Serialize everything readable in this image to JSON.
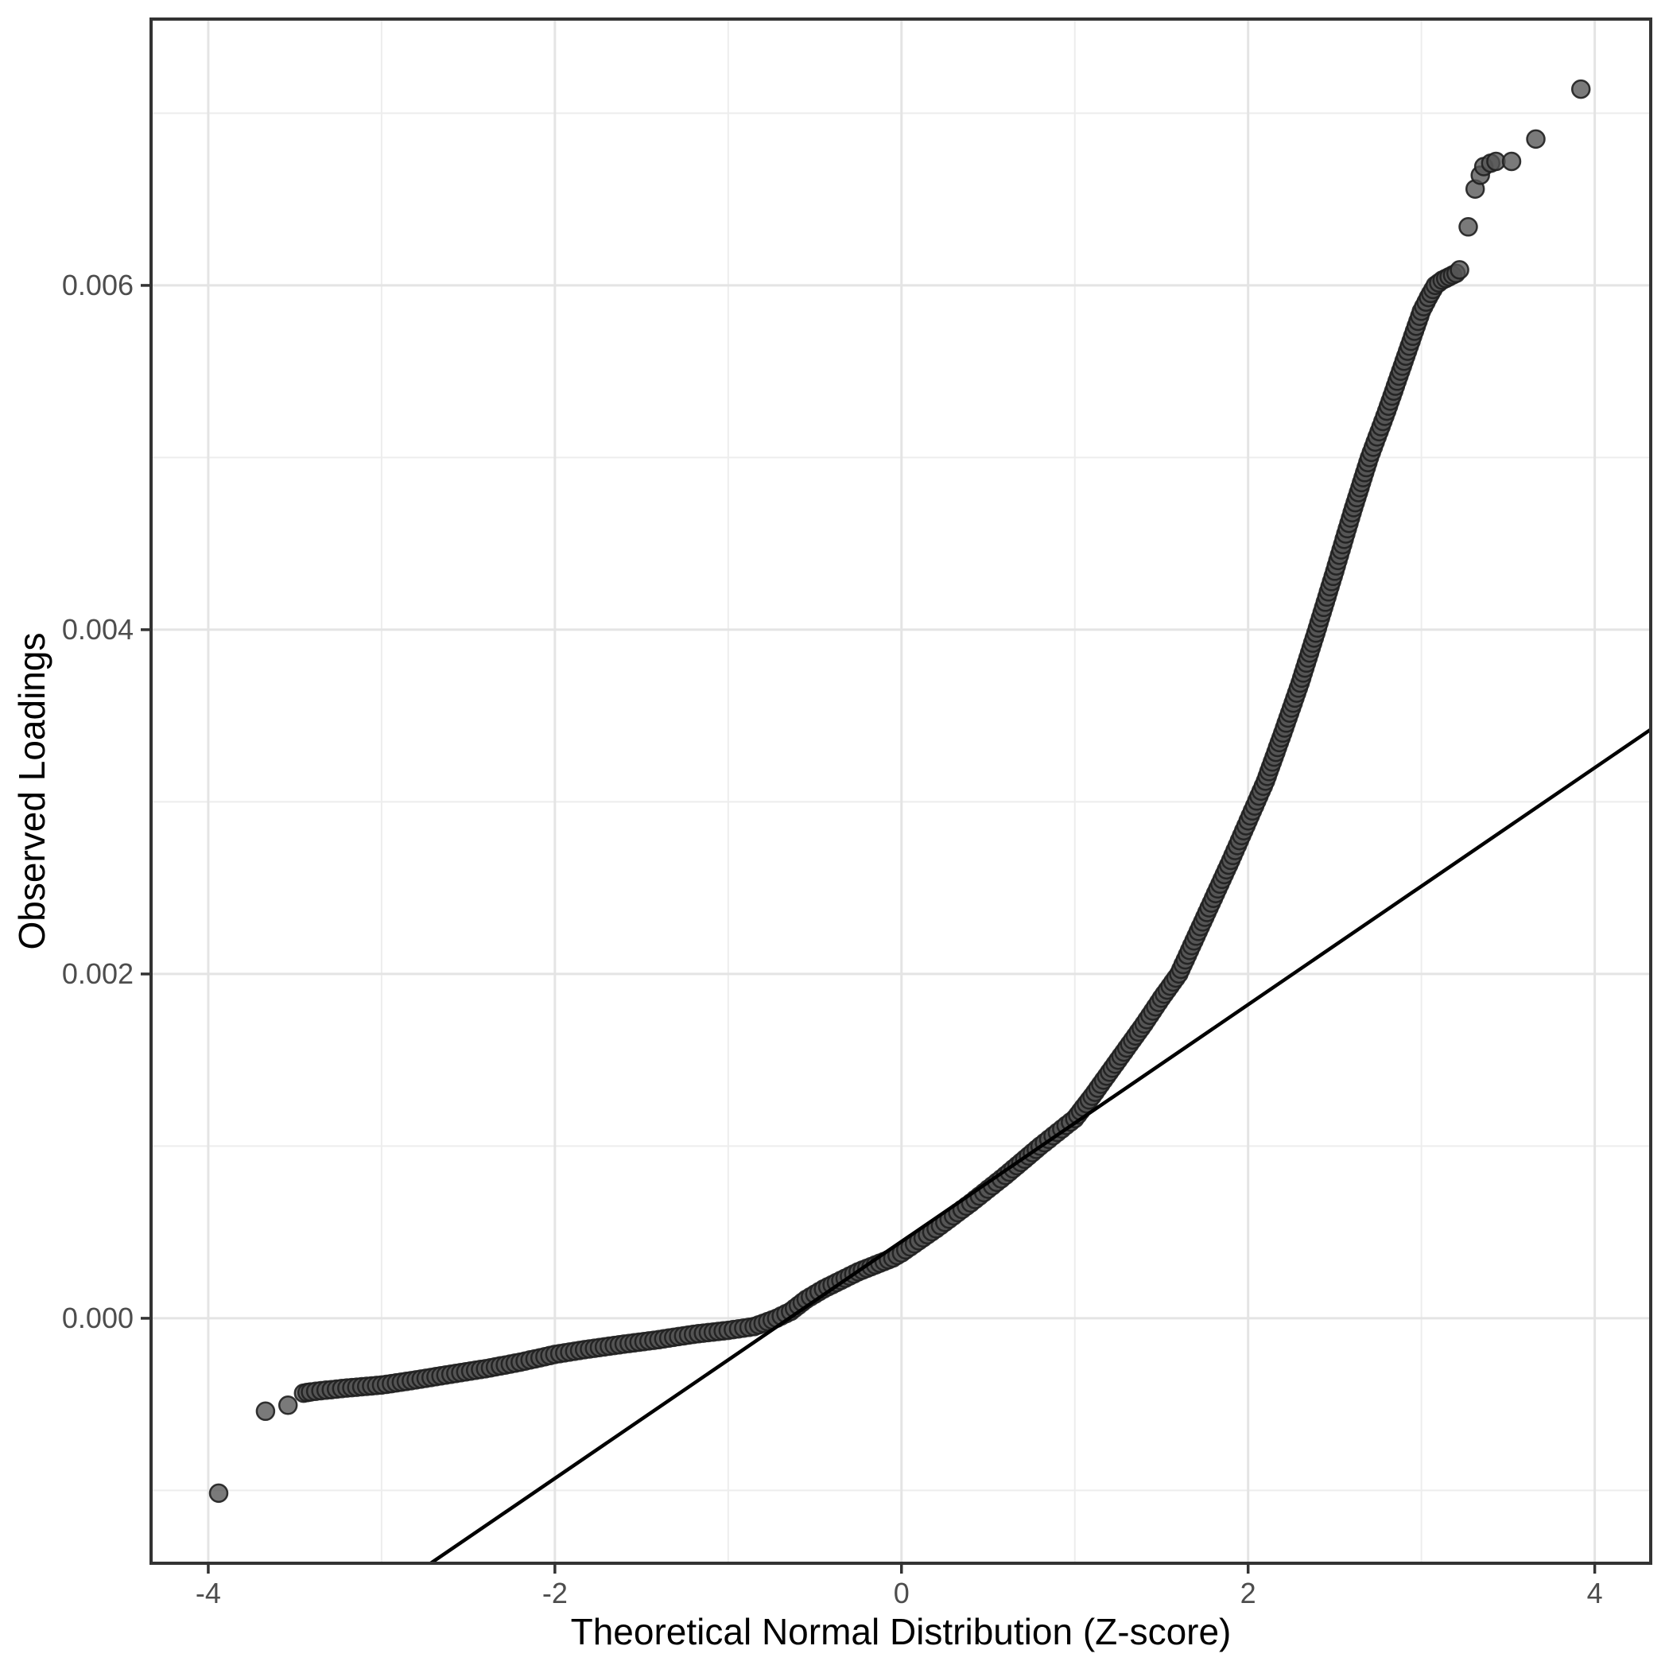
{
  "figure": {
    "kind": "qq-plot",
    "background_color": "#ffffff",
    "panel_background_color": "#ffffff",
    "panel_border_color": "#333333",
    "grid_major_color": "#e4e4e4",
    "grid_minor_color": "#ededed",
    "tick_mark_color": "#333333",
    "tick_label_color": "#4d4d4d",
    "axis_title_color": "#000000"
  },
  "chart_data": {
    "type": "scatter",
    "subtype": "qq-plot",
    "title": "",
    "xlabel": "Theoretical Normal Distribution (Z-score)",
    "ylabel": "Observed Loadings",
    "xlim": [
      -4.33,
      4.323
    ],
    "ylim": [
      -0.001423,
      0.007547
    ],
    "grid": true,
    "legend": false,
    "x_major_ticks": [
      -4,
      -2,
      0,
      2,
      4
    ],
    "x_major_tick_labels": [
      "-4",
      "-2",
      "0",
      "2",
      "4"
    ],
    "x_minor_ticks": [
      -3,
      -1,
      1,
      3
    ],
    "y_major_ticks": [
      0.0,
      0.002,
      0.004,
      0.006
    ],
    "y_major_tick_labels": [
      "0.000",
      "0.002",
      "0.004",
      "0.006"
    ],
    "y_minor_ticks": [
      -0.001,
      0.001,
      0.003,
      0.005,
      0.007
    ],
    "reference_line": {
      "slope": 0.000688,
      "intercept": 0.000446,
      "color": "#000000"
    },
    "curve_anchors": [
      [
        -3.45,
        -0.000435
      ],
      [
        -3.41,
        -0.000428
      ],
      [
        -3.38,
        -0.000424
      ],
      [
        -3.2,
        -0.000405
      ],
      [
        -3.0,
        -0.000388
      ],
      [
        -2.8,
        -0.000358
      ],
      [
        -2.6,
        -0.000325
      ],
      [
        -2.4,
        -0.000293
      ],
      [
        -2.2,
        -0.000255
      ],
      [
        -2.0,
        -0.00021
      ],
      [
        -1.8,
        -0.000178
      ],
      [
        -1.6,
        -0.00015
      ],
      [
        -1.4,
        -0.000124
      ],
      [
        -1.2,
        -9.3e-05
      ],
      [
        -1.0,
        -7e-05
      ],
      [
        -0.85,
        -4.8e-05
      ],
      [
        -0.72,
        0.0
      ],
      [
        -0.64,
        4e-05
      ],
      [
        -0.55,
        0.00011
      ],
      [
        -0.45,
        0.00017
      ],
      [
        -0.35,
        0.00022
      ],
      [
        -0.25,
        0.00027
      ],
      [
        -0.15,
        0.00031
      ],
      [
        -0.05,
        0.00035
      ],
      [
        0.0,
        0.00038
      ],
      [
        0.2,
        0.00052
      ],
      [
        0.4,
        0.00067
      ],
      [
        0.6,
        0.00083
      ],
      [
        0.8,
        0.001
      ],
      [
        1.0,
        0.00116
      ],
      [
        1.1,
        0.00129
      ],
      [
        1.2,
        0.00143
      ],
      [
        1.3,
        0.00157
      ],
      [
        1.4,
        0.00171
      ],
      [
        1.5,
        0.00186
      ],
      [
        1.6,
        0.002
      ],
      [
        1.7,
        0.00222
      ],
      [
        1.8,
        0.00244
      ],
      [
        1.9,
        0.00266
      ],
      [
        2.0,
        0.00289
      ],
      [
        2.1,
        0.00312
      ],
      [
        2.2,
        0.0034
      ],
      [
        2.3,
        0.00369
      ],
      [
        2.4,
        0.00401
      ],
      [
        2.5,
        0.00434
      ],
      [
        2.6,
        0.00468
      ],
      [
        2.7,
        0.005
      ],
      [
        2.8,
        0.00527
      ],
      [
        2.9,
        0.00556
      ],
      [
        3.0,
        0.00585
      ],
      [
        3.04,
        0.00593
      ],
      [
        3.08,
        0.006
      ],
      [
        3.12,
        0.00603
      ],
      [
        3.16,
        0.00605
      ],
      [
        3.2,
        0.00607
      ],
      [
        3.22,
        0.00609
      ]
    ],
    "isolated_points": [
      [
        -3.94,
        -0.001016
      ],
      [
        -3.67,
        -0.00054
      ],
      [
        -3.54,
        -0.000505
      ],
      [
        3.27,
        0.00634
      ],
      [
        3.31,
        0.00656
      ],
      [
        3.34,
        0.00664
      ],
      [
        3.36,
        0.00669
      ],
      [
        3.4,
        0.00671
      ],
      [
        3.43,
        0.00672
      ],
      [
        3.52,
        0.00672
      ],
      [
        3.66,
        0.00685
      ],
      [
        3.92,
        0.00714
      ]
    ],
    "point_style": {
      "radius_px": 11,
      "fill": "#555555",
      "fill_opacity": 0.78,
      "stroke": "#1f1f1f",
      "stroke_opacity": 0.9,
      "stroke_width": 2.5
    }
  }
}
